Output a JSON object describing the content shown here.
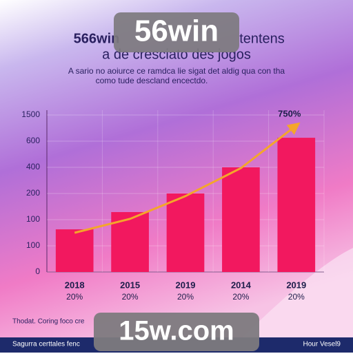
{
  "chart_data": {
    "type": "bar",
    "title_lines": [
      "566win",
      "tentens",
      "a de cresciato des jogos"
    ],
    "subtitle_lines": [
      "A sario no aoiurce ce ramdca lie sigat det aldig qua con tha",
      "como tude descland encectdo."
    ],
    "categories": [
      "2018",
      "2015",
      "2019",
      "2014",
      "2019"
    ],
    "category_sublabels": [
      "20%",
      "20%",
      "20%",
      "20%",
      "20%"
    ],
    "values": [
      1.63,
      2.29,
      3.0,
      4.0,
      5.13
    ],
    "color": "#f2185f",
    "ylim": [
      0,
      6
    ],
    "yticks": [
      {
        "value": 0,
        "label": "0"
      },
      {
        "value": 1,
        "label": "100"
      },
      {
        "value": 2,
        "label": "100"
      },
      {
        "value": 3,
        "label": "200"
      },
      {
        "value": 4,
        "label": "400"
      },
      {
        "value": 5,
        "label": "600"
      },
      {
        "value": 6,
        "label": "1500"
      }
    ],
    "grid": true,
    "line": {
      "values": [
        1.5,
        2.03,
        2.9,
        3.97,
        5.6
      ],
      "color": "#f4a62a",
      "end_label": "750%"
    }
  },
  "overlays": {
    "top_banner": "56win",
    "bottom_banner": "15w.com",
    "footnote": "Thodat. Coring foco cre",
    "footer_left": "Sagurra certtales fenc",
    "footer_right": "Hour Vesel9"
  }
}
